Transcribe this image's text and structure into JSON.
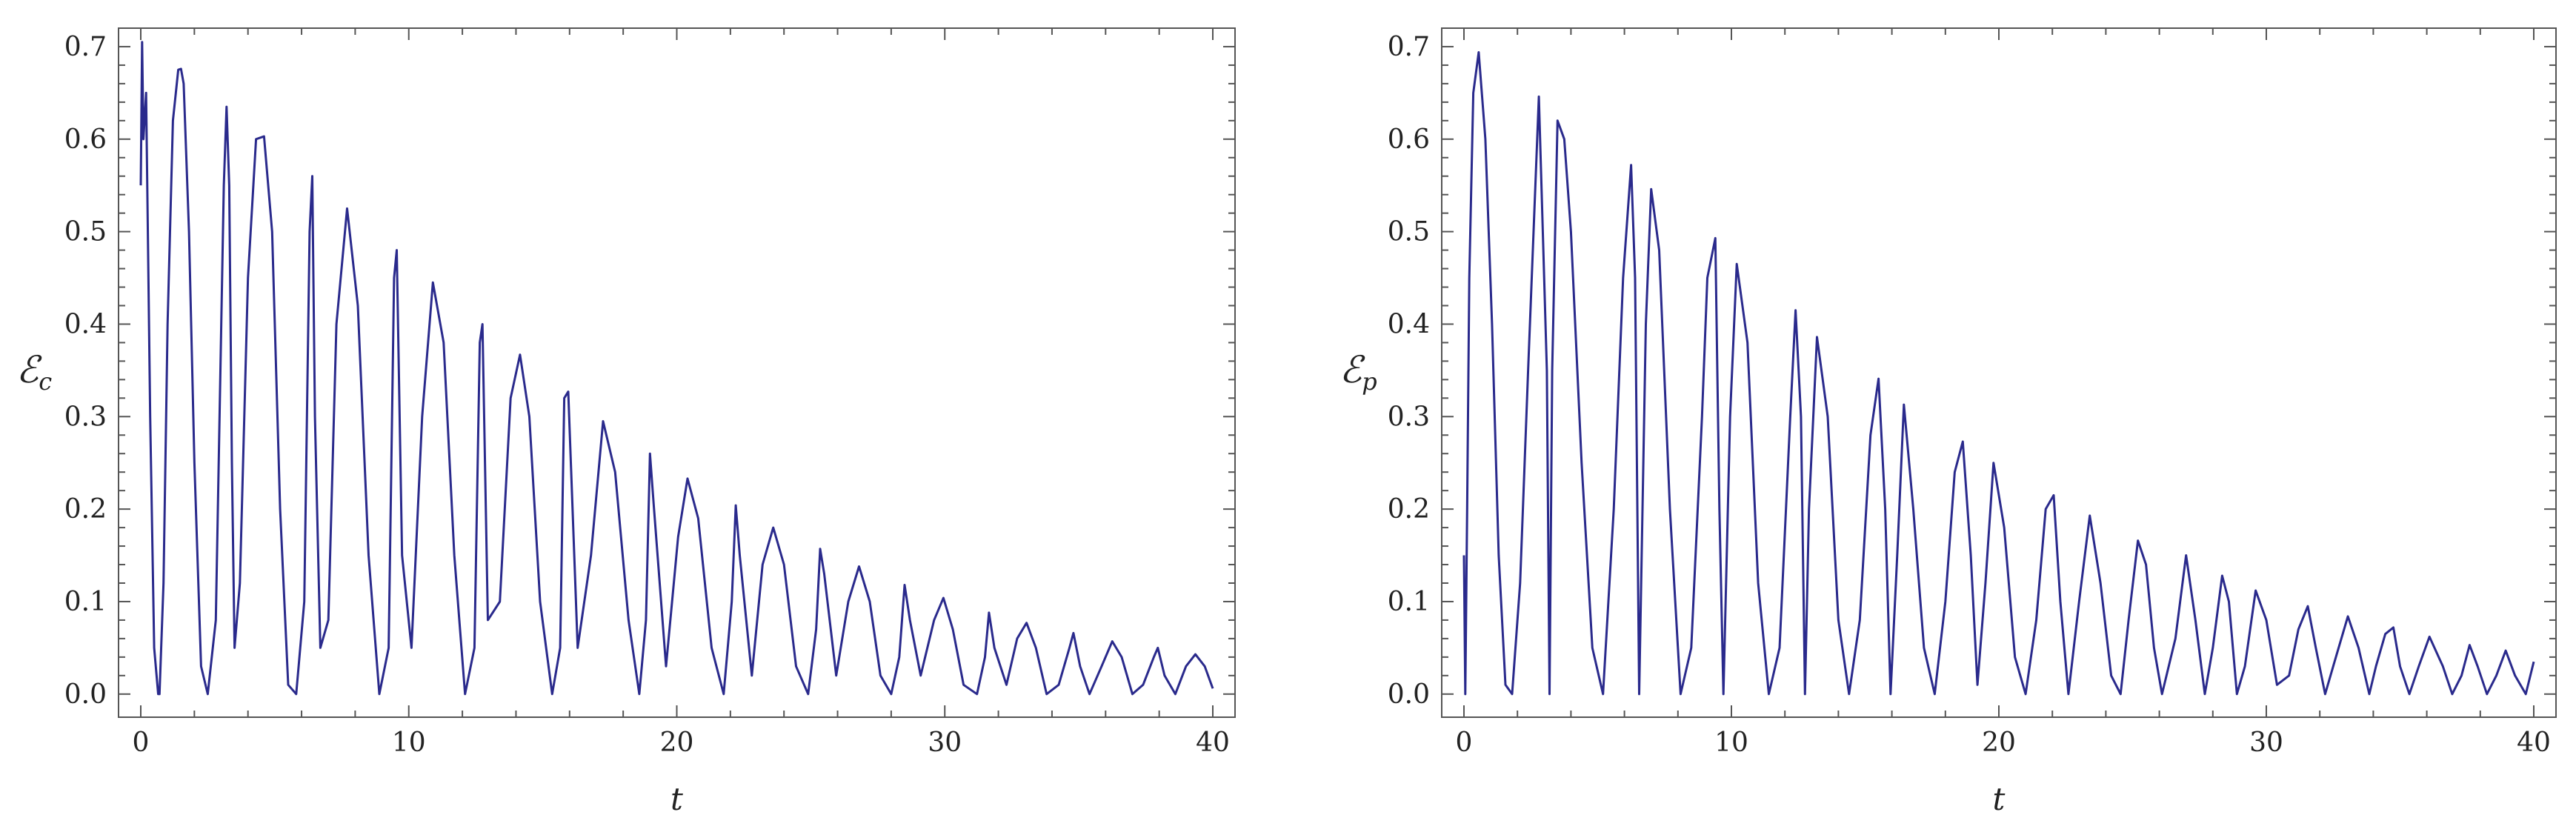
{
  "chart_data": [
    {
      "type": "line",
      "xlabel": "t",
      "ylabel_symbol": "ℰ",
      "ylabel_subscript": "c",
      "xlim": [
        0,
        40
      ],
      "ylim": [
        0,
        0.7
      ],
      "xticks": [
        0,
        10,
        20,
        30,
        40
      ],
      "yticks": [
        0.0,
        0.1,
        0.2,
        0.3,
        0.4,
        0.5,
        0.6,
        0.7
      ],
      "ytick_labels": [
        "0.0",
        "0.1",
        "0.2",
        "0.3",
        "0.4",
        "0.5",
        "0.6",
        "0.7"
      ],
      "grid": false,
      "line_color": "#2a2a8c",
      "series": [
        {
          "x": [
            0.0,
            0.05,
            0.1,
            0.2,
            0.35,
            0.5,
            0.65,
            0.7,
            0.85,
            1.0,
            1.2,
            1.4,
            1.5,
            1.6,
            1.8,
            2.0,
            2.25,
            2.5,
            2.8,
            3.1,
            3.2,
            3.3,
            3.4,
            3.5,
            3.7,
            4.0,
            4.3,
            4.6,
            4.9,
            5.2,
            5.5,
            5.8,
            6.1,
            6.3,
            6.4,
            6.5,
            6.7,
            7.0,
            7.3,
            7.7,
            8.1,
            8.5,
            8.9,
            9.25,
            9.45,
            9.55,
            9.75,
            10.1,
            10.5,
            10.9,
            11.3,
            11.7,
            12.1,
            12.45,
            12.65,
            12.75,
            12.95,
            13.4,
            13.8,
            14.15,
            14.5,
            14.9,
            15.35,
            15.65,
            15.8,
            15.95,
            16.3,
            16.8,
            17.25,
            17.7,
            18.2,
            18.6,
            18.85,
            19.0,
            19.15,
            19.6,
            20.05,
            20.4,
            20.8,
            21.3,
            21.75,
            22.05,
            22.2,
            22.35,
            22.8,
            23.2,
            23.6,
            24.0,
            24.45,
            24.9,
            25.2,
            25.35,
            25.5,
            25.95,
            26.4,
            26.8,
            27.2,
            27.6,
            28.0,
            28.3,
            28.5,
            28.7,
            29.1,
            29.6,
            29.95,
            30.3,
            30.7,
            31.2,
            31.5,
            31.65,
            31.85,
            32.3,
            32.7,
            33.05,
            33.4,
            33.8,
            34.25,
            34.65,
            34.8,
            35.05,
            35.4,
            35.85,
            36.25,
            36.6,
            37.0,
            37.4,
            37.8,
            37.95,
            38.2,
            38.6,
            39.0,
            39.35,
            39.7,
            40.0
          ],
          "y": [
            0.55,
            0.705,
            0.6,
            0.65,
            0.3,
            0.05,
            0.0,
            0.0,
            0.12,
            0.4,
            0.62,
            0.675,
            0.676,
            0.66,
            0.5,
            0.25,
            0.03,
            0.0,
            0.08,
            0.55,
            0.635,
            0.55,
            0.25,
            0.05,
            0.12,
            0.45,
            0.6,
            0.603,
            0.5,
            0.2,
            0.01,
            0.0,
            0.1,
            0.5,
            0.56,
            0.3,
            0.05,
            0.08,
            0.4,
            0.525,
            0.42,
            0.15,
            0.0,
            0.05,
            0.45,
            0.48,
            0.15,
            0.05,
            0.3,
            0.445,
            0.38,
            0.15,
            0.0,
            0.05,
            0.38,
            0.4,
            0.08,
            0.1,
            0.32,
            0.367,
            0.3,
            0.1,
            0.0,
            0.05,
            0.32,
            0.327,
            0.05,
            0.15,
            0.295,
            0.24,
            0.08,
            0.0,
            0.08,
            0.26,
            0.2,
            0.03,
            0.17,
            0.233,
            0.19,
            0.05,
            0.0,
            0.1,
            0.204,
            0.15,
            0.02,
            0.14,
            0.18,
            0.14,
            0.03,
            0.0,
            0.07,
            0.157,
            0.13,
            0.02,
            0.1,
            0.138,
            0.1,
            0.02,
            0.0,
            0.04,
            0.118,
            0.08,
            0.02,
            0.08,
            0.104,
            0.07,
            0.01,
            0.0,
            0.04,
            0.088,
            0.05,
            0.01,
            0.06,
            0.077,
            0.05,
            0.0,
            0.01,
            0.05,
            0.066,
            0.03,
            0.0,
            0.03,
            0.057,
            0.04,
            0.0,
            0.01,
            0.04,
            0.05,
            0.02,
            0.0,
            0.03,
            0.043,
            0.03,
            0.006
          ]
        }
      ]
    },
    {
      "type": "line",
      "xlabel": "t",
      "ylabel_symbol": "ℰ",
      "ylabel_subscript": "p",
      "xlim": [
        0,
        40
      ],
      "ylim": [
        0,
        0.7
      ],
      "xticks": [
        0,
        10,
        20,
        30,
        40
      ],
      "yticks": [
        0.0,
        0.1,
        0.2,
        0.3,
        0.4,
        0.5,
        0.6,
        0.7
      ],
      "ytick_labels": [
        "0.0",
        "0.1",
        "0.2",
        "0.3",
        "0.4",
        "0.5",
        "0.6",
        "0.7"
      ],
      "grid": false,
      "line_color": "#2a2a8c",
      "series": [
        {
          "x": [
            0.0,
            0.05,
            0.12,
            0.2,
            0.35,
            0.55,
            0.8,
            1.05,
            1.3,
            1.55,
            1.8,
            2.1,
            2.4,
            2.8,
            3.1,
            3.2,
            3.3,
            3.5,
            3.75,
            4.0,
            4.4,
            4.8,
            5.2,
            5.6,
            5.95,
            6.25,
            6.4,
            6.55,
            6.8,
            7.0,
            7.3,
            7.7,
            8.1,
            8.5,
            8.9,
            9.1,
            9.4,
            9.55,
            9.7,
            9.95,
            10.2,
            10.6,
            11.0,
            11.4,
            11.8,
            12.2,
            12.4,
            12.6,
            12.75,
            12.9,
            13.2,
            13.6,
            14.0,
            14.4,
            14.8,
            15.2,
            15.5,
            15.75,
            15.95,
            16.2,
            16.45,
            16.8,
            17.2,
            17.6,
            18.0,
            18.35,
            18.65,
            18.95,
            19.2,
            19.5,
            19.8,
            20.2,
            20.6,
            21.0,
            21.4,
            21.75,
            22.05,
            22.3,
            22.6,
            23.0,
            23.4,
            23.8,
            24.2,
            24.55,
            24.85,
            25.2,
            25.5,
            25.8,
            26.1,
            26.6,
            27.0,
            27.35,
            27.7,
            28.0,
            28.35,
            28.6,
            28.9,
            29.2,
            29.6,
            30.0,
            30.4,
            30.85,
            31.2,
            31.55,
            31.85,
            32.2,
            32.6,
            33.05,
            33.45,
            33.85,
            34.1,
            34.45,
            34.75,
            35.0,
            35.35,
            35.7,
            36.1,
            36.6,
            36.95,
            37.3,
            37.6,
            37.9,
            38.25,
            38.6,
            38.95,
            39.3,
            39.7,
            40.0
          ],
          "y": [
            0.15,
            0.0,
            0.2,
            0.45,
            0.65,
            0.694,
            0.6,
            0.4,
            0.15,
            0.01,
            0.0,
            0.12,
            0.35,
            0.646,
            0.35,
            0.0,
            0.35,
            0.62,
            0.6,
            0.5,
            0.25,
            0.05,
            0.0,
            0.2,
            0.45,
            0.572,
            0.45,
            0.0,
            0.4,
            0.546,
            0.48,
            0.2,
            0.0,
            0.05,
            0.3,
            0.45,
            0.493,
            0.2,
            0.0,
            0.3,
            0.465,
            0.38,
            0.12,
            0.0,
            0.05,
            0.3,
            0.415,
            0.3,
            0.0,
            0.2,
            0.386,
            0.3,
            0.08,
            0.0,
            0.08,
            0.28,
            0.341,
            0.2,
            0.0,
            0.15,
            0.313,
            0.2,
            0.05,
            0.0,
            0.1,
            0.24,
            0.273,
            0.15,
            0.01,
            0.12,
            0.25,
            0.18,
            0.04,
            0.0,
            0.08,
            0.2,
            0.215,
            0.1,
            0.0,
            0.1,
            0.193,
            0.12,
            0.02,
            0.0,
            0.08,
            0.166,
            0.14,
            0.05,
            0.0,
            0.06,
            0.15,
            0.08,
            0.0,
            0.05,
            0.128,
            0.1,
            0.0,
            0.03,
            0.112,
            0.08,
            0.01,
            0.02,
            0.07,
            0.095,
            0.05,
            0.0,
            0.04,
            0.084,
            0.05,
            0.0,
            0.03,
            0.065,
            0.072,
            0.03,
            0.0,
            0.03,
            0.062,
            0.03,
            0.0,
            0.02,
            0.053,
            0.03,
            0.0,
            0.02,
            0.047,
            0.02,
            0.0,
            0.035
          ]
        }
      ]
    }
  ]
}
